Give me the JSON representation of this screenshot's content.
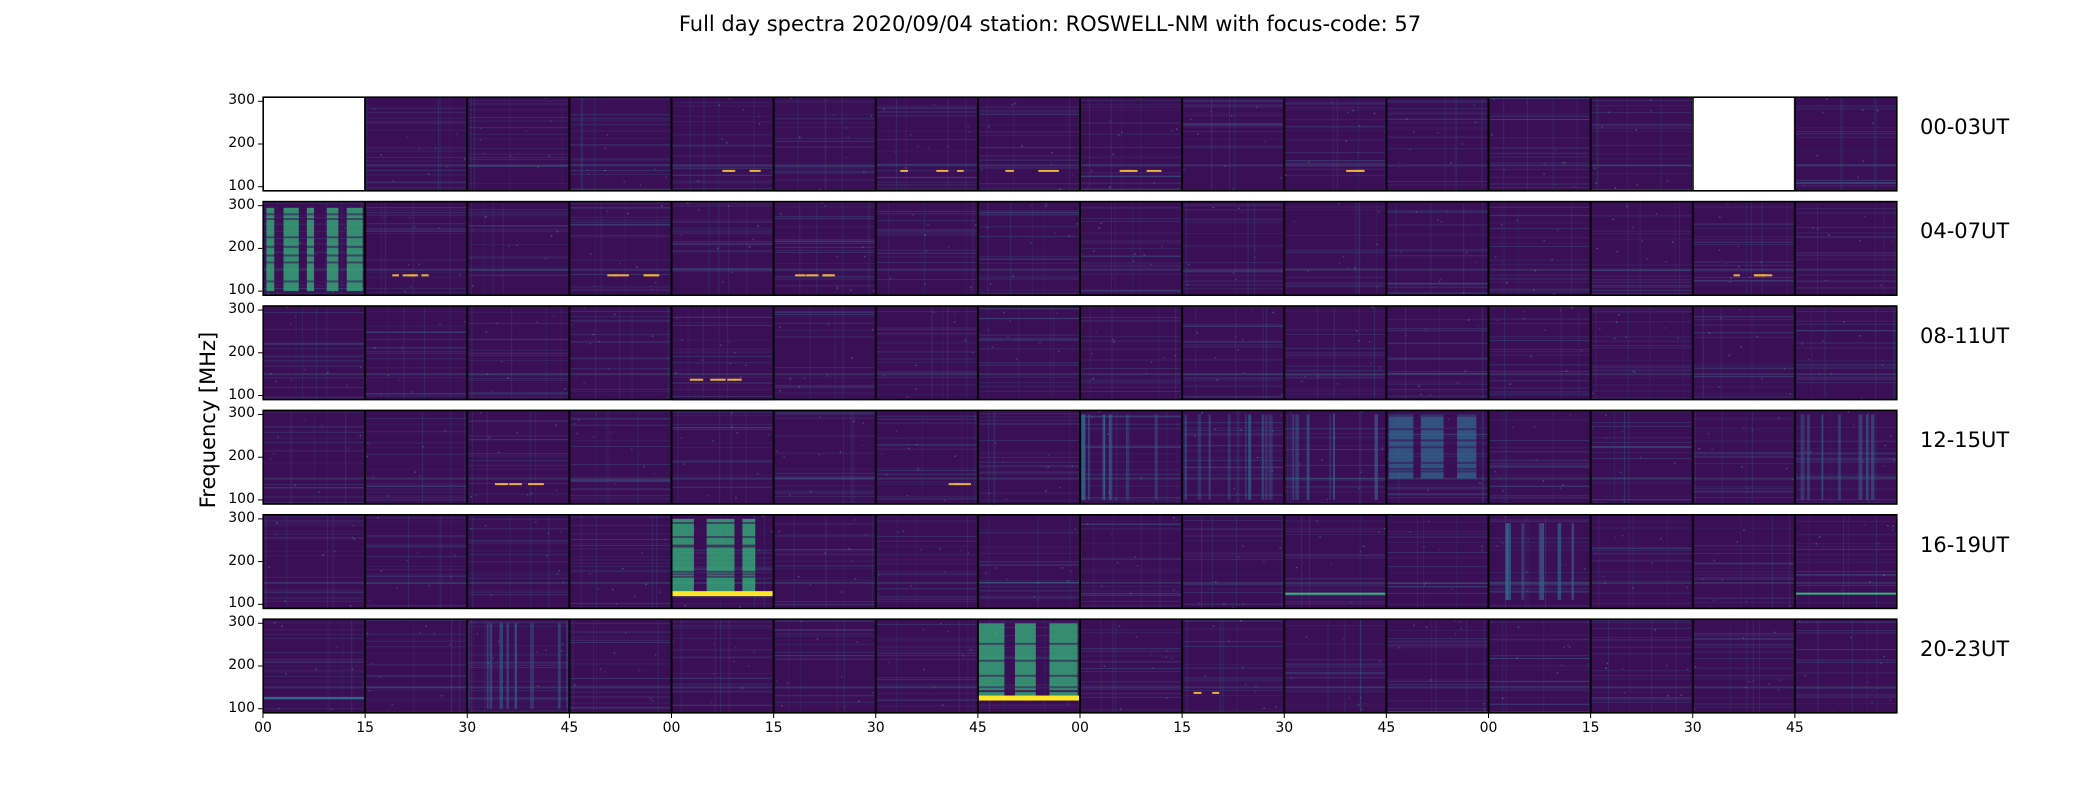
{
  "chart_data": {
    "type": "heatmap",
    "title": "Full day spectra 2020/09/04 station: ROSWELL-NM with focus-code: 57",
    "ylabel": "Frequency [MHz]",
    "xlabel": "",
    "ylim": [
      90,
      310
    ],
    "y_ticks": [
      "100",
      "200",
      "300"
    ],
    "x_ticks": [
      "00",
      "15",
      "30",
      "45",
      "00",
      "15",
      "30",
      "45",
      "00",
      "15",
      "30",
      "45",
      "00",
      "15",
      "30",
      "45"
    ],
    "rows": [
      {
        "label": "00-03UT",
        "panels_missing": [
          0,
          14
        ],
        "features": [
          {
            "panel": 4,
            "type": "dashes",
            "freq_mhz": 137
          },
          {
            "panel": 6,
            "type": "dashes",
            "freq_mhz": 137
          },
          {
            "panel": 7,
            "type": "dashes",
            "freq_mhz": 137
          },
          {
            "panel": 8,
            "type": "dashes",
            "freq_mhz": 137
          },
          {
            "panel": 10,
            "type": "dashes",
            "freq_mhz": 137
          }
        ]
      },
      {
        "label": "04-07UT",
        "panels_missing": [],
        "features": [
          {
            "panel": 0,
            "type": "burst",
            "freq_range": [
              100,
              295
            ],
            "level": "high"
          },
          {
            "panel": 1,
            "type": "dashes",
            "freq_mhz": 137
          },
          {
            "panel": 3,
            "type": "dashes",
            "freq_mhz": 137
          },
          {
            "panel": 5,
            "type": "dashes",
            "freq_mhz": 137
          },
          {
            "panel": 14,
            "type": "dashes",
            "freq_mhz": 137
          }
        ]
      },
      {
        "label": "08-11UT",
        "panels_missing": [],
        "features": [
          {
            "panel": 4,
            "type": "dashes",
            "freq_mhz": 137
          }
        ]
      },
      {
        "label": "12-15UT",
        "panels_missing": [],
        "features": [
          {
            "panel": 2,
            "type": "dashes",
            "freq_mhz": 137
          },
          {
            "panel": 6,
            "type": "dashes",
            "freq_mhz": 137
          },
          {
            "panel": 8,
            "type": "streaks",
            "freq_range": [
              100,
              300
            ],
            "level": "medium"
          },
          {
            "panel": 9,
            "type": "streaks",
            "freq_range": [
              100,
              300
            ],
            "level": "medium"
          },
          {
            "panel": 10,
            "type": "streaks",
            "freq_range": [
              100,
              300
            ],
            "level": "medium"
          },
          {
            "panel": 11,
            "type": "burst",
            "freq_range": [
              150,
              300
            ],
            "level": "medium"
          },
          {
            "panel": 15,
            "type": "streaks",
            "freq_range": [
              100,
              300
            ],
            "level": "medium"
          }
        ]
      },
      {
        "label": "16-19UT",
        "panels_missing": [],
        "features": [
          {
            "panel": 4,
            "type": "burst",
            "freq_range": [
              125,
              300
            ],
            "level": "high"
          },
          {
            "panel": 4,
            "type": "line",
            "freq_mhz": 125,
            "level": "max"
          },
          {
            "panel": 10,
            "type": "line",
            "freq_mhz": 125,
            "level": "high"
          },
          {
            "panel": 12,
            "type": "streaks",
            "freq_range": [
              110,
              290
            ],
            "level": "medium"
          },
          {
            "panel": 15,
            "type": "line",
            "freq_mhz": 125,
            "level": "high"
          }
        ]
      },
      {
        "label": "20-23UT",
        "panels_missing": [],
        "features": [
          {
            "panel": 0,
            "type": "line",
            "freq_mhz": 125,
            "level": "medium"
          },
          {
            "panel": 2,
            "type": "streaks",
            "freq_range": [
              100,
              300
            ],
            "level": "medium"
          },
          {
            "panel": 7,
            "type": "burst",
            "freq_range": [
              130,
              300
            ],
            "level": "high"
          },
          {
            "panel": 7,
            "type": "line",
            "freq_mhz": 125,
            "level": "max"
          },
          {
            "panel": 9,
            "type": "dashes",
            "freq_mhz": 137
          }
        ]
      }
    ],
    "colormap": {
      "name": "viridis",
      "background": "#3b0f55",
      "low": "#440154",
      "mid": "#31688e",
      "high": "#35b779",
      "max": "#fde725"
    }
  }
}
